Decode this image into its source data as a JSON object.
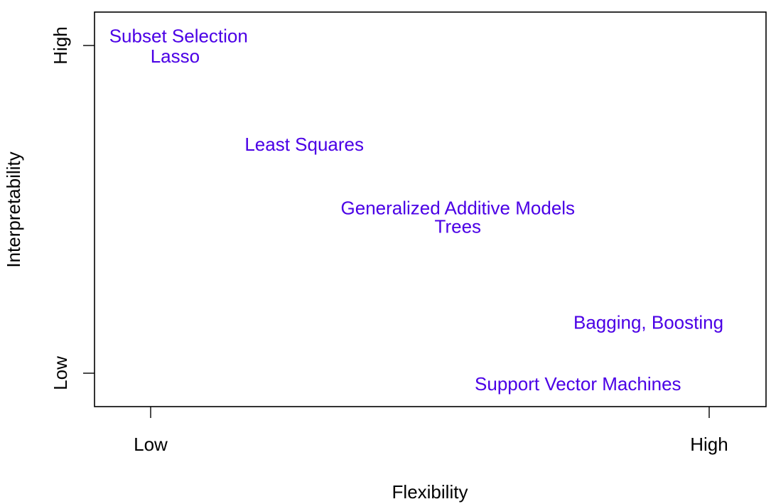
{
  "chart_data": {
    "type": "scatter",
    "title": "",
    "xlabel": "Flexibility",
    "ylabel": "Interpretability",
    "xlim": [
      0,
      10
    ],
    "ylim": [
      0,
      10
    ],
    "x_ticks": [
      {
        "value": 1,
        "label": "Low"
      },
      {
        "value": 9,
        "label": "High"
      }
    ],
    "y_ticks": [
      {
        "value": 1,
        "label": "Low"
      },
      {
        "value": 9,
        "label": "High"
      }
    ],
    "points": [
      {
        "label": "Subset Selection",
        "x": 1.4,
        "y": 9.2
      },
      {
        "label": "Lasso",
        "x": 1.35,
        "y": 8.7
      },
      {
        "label": "Least Squares",
        "x": 3.2,
        "y": 6.55
      },
      {
        "label": "Generalized Additive Models",
        "x": 5.4,
        "y": 5.0
      },
      {
        "label": "Trees",
        "x": 5.4,
        "y": 4.55
      },
      {
        "label": "Bagging, Boosting",
        "x": 8.13,
        "y": 2.2
      },
      {
        "label": "Support Vector Machines",
        "x": 7.12,
        "y": 0.7
      }
    ],
    "label_color": "#4b00e6",
    "grid": false
  }
}
